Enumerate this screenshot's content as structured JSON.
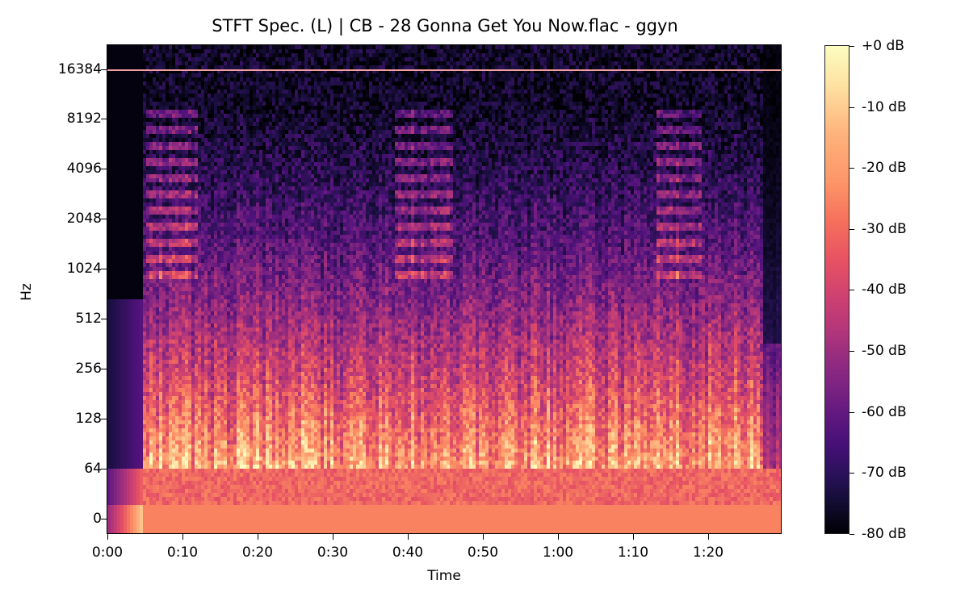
{
  "chart_data": {
    "type": "heatmap",
    "title": "STFT Spec. (L) | CB - 28 Gonna Get You Now.flac - ggyn",
    "xlabel": "Time",
    "ylabel": "Hz",
    "x_tick_labels": [
      "0:00",
      "0:10",
      "0:20",
      "0:30",
      "0:40",
      "0:50",
      "1:00",
      "1:10",
      "1:20"
    ],
    "y_tick_labels": [
      "16384",
      "8192",
      "4096",
      "2048",
      "1024",
      "512",
      "256",
      "128",
      "64",
      "0"
    ],
    "y_scale": "log2",
    "xlim_seconds": [
      0,
      90
    ],
    "colormap": "magma",
    "colorbar": {
      "tick_labels": [
        "+0 dB",
        "-10 dB",
        "-20 dB",
        "-30 dB",
        "-40 dB",
        "-50 dB",
        "-60 dB",
        "-70 dB",
        "-80 dB"
      ],
      "range_db": [
        -80,
        0
      ]
    },
    "annotations": {
      "steady_tone_hz": 16000,
      "silence_until_s": 4.5,
      "fade_out_from_s": 87.5,
      "energy_bursts_s": [
        [
          5,
          12
        ],
        [
          38,
          46
        ],
        [
          73,
          79
        ]
      ]
    },
    "grid": false
  },
  "colors": {
    "background": "#ffffff",
    "plot_floor": "#050312",
    "low_band": "#f47a64",
    "accent": "#fcfdbf"
  }
}
